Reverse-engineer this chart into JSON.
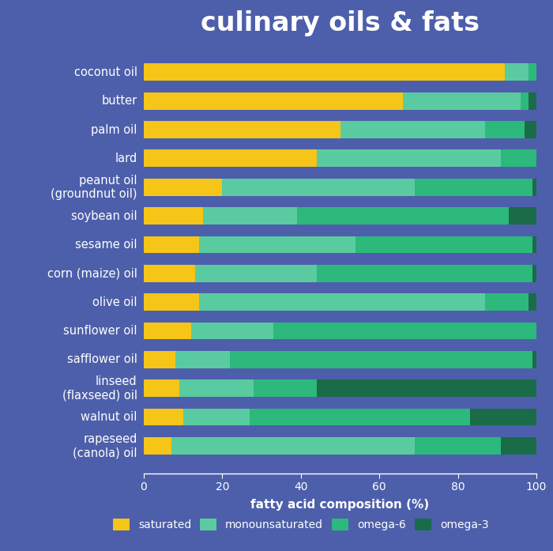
{
  "title": "culinary oils & fats",
  "xlabel": "fatty acid composition (%)",
  "background_color": "#4d5faa",
  "bar_height": 0.6,
  "oils": [
    "coconut oil",
    "butter",
    "palm oil",
    "lard",
    "peanut oil\n(groundnut oil)",
    "soybean oil",
    "sesame oil",
    "corn (maize) oil",
    "olive oil",
    "sunflower oil",
    "safflower oil",
    "linseed\n(flaxseed) oil",
    "walnut oil",
    "rapeseed\n(canola) oil"
  ],
  "saturated": [
    92,
    66,
    50,
    44,
    20,
    15,
    14,
    13,
    14,
    12,
    8,
    9,
    10,
    7
  ],
  "monounsaturated": [
    6,
    30,
    37,
    47,
    49,
    24,
    40,
    31,
    73,
    21,
    14,
    19,
    17,
    62
  ],
  "omega6": [
    2,
    2,
    10,
    9,
    30,
    54,
    45,
    55,
    11,
    67,
    77,
    16,
    56,
    22
  ],
  "omega3": [
    0,
    2,
    3,
    0,
    1,
    7,
    1,
    1,
    2,
    0,
    1,
    56,
    17,
    9
  ],
  "colors": {
    "saturated": "#f5c518",
    "monounsaturated": "#5acba0",
    "omega6": "#2db87c",
    "omega3": "#1a6b48"
  },
  "text_color": "#ffffff",
  "title_fontsize": 24,
  "label_fontsize": 10.5,
  "tick_fontsize": 10,
  "xlabel_fontsize": 11,
  "legend_fontsize": 10
}
